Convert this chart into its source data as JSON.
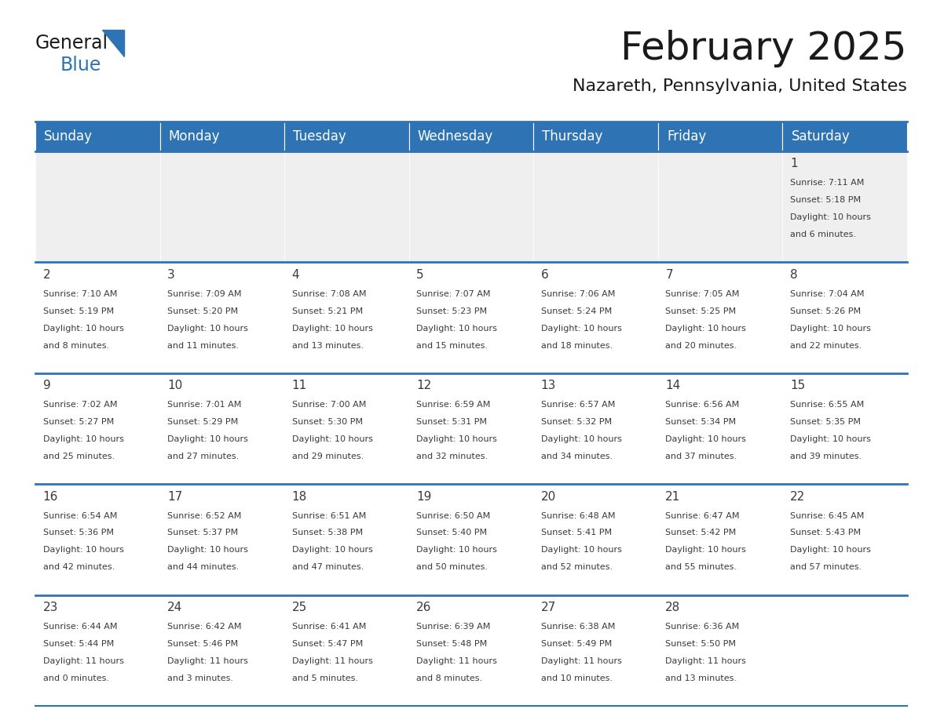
{
  "title": "February 2025",
  "subtitle": "Nazareth, Pennsylvania, United States",
  "header_bg_color": "#2E74B5",
  "header_text_color": "#FFFFFF",
  "cell_bg_white": "#FFFFFF",
  "cell_bg_gray": "#EFEFEF",
  "border_color": "#2E74B5",
  "text_color": "#3A3A3A",
  "day_names": [
    "Sunday",
    "Monday",
    "Tuesday",
    "Wednesday",
    "Thursday",
    "Friday",
    "Saturday"
  ],
  "days_data": [
    {
      "day": "1",
      "col": 6,
      "row": 0,
      "sunrise": "7:11 AM",
      "sunset": "5:18 PM",
      "daylight_h": "10 hours",
      "daylight_m": "and 6 minutes."
    },
    {
      "day": "2",
      "col": 0,
      "row": 1,
      "sunrise": "7:10 AM",
      "sunset": "5:19 PM",
      "daylight_h": "10 hours",
      "daylight_m": "and 8 minutes."
    },
    {
      "day": "3",
      "col": 1,
      "row": 1,
      "sunrise": "7:09 AM",
      "sunset": "5:20 PM",
      "daylight_h": "10 hours",
      "daylight_m": "and 11 minutes."
    },
    {
      "day": "4",
      "col": 2,
      "row": 1,
      "sunrise": "7:08 AM",
      "sunset": "5:21 PM",
      "daylight_h": "10 hours",
      "daylight_m": "and 13 minutes."
    },
    {
      "day": "5",
      "col": 3,
      "row": 1,
      "sunrise": "7:07 AM",
      "sunset": "5:23 PM",
      "daylight_h": "10 hours",
      "daylight_m": "and 15 minutes."
    },
    {
      "day": "6",
      "col": 4,
      "row": 1,
      "sunrise": "7:06 AM",
      "sunset": "5:24 PM",
      "daylight_h": "10 hours",
      "daylight_m": "and 18 minutes."
    },
    {
      "day": "7",
      "col": 5,
      "row": 1,
      "sunrise": "7:05 AM",
      "sunset": "5:25 PM",
      "daylight_h": "10 hours",
      "daylight_m": "and 20 minutes."
    },
    {
      "day": "8",
      "col": 6,
      "row": 1,
      "sunrise": "7:04 AM",
      "sunset": "5:26 PM",
      "daylight_h": "10 hours",
      "daylight_m": "and 22 minutes."
    },
    {
      "day": "9",
      "col": 0,
      "row": 2,
      "sunrise": "7:02 AM",
      "sunset": "5:27 PM",
      "daylight_h": "10 hours",
      "daylight_m": "and 25 minutes."
    },
    {
      "day": "10",
      "col": 1,
      "row": 2,
      "sunrise": "7:01 AM",
      "sunset": "5:29 PM",
      "daylight_h": "10 hours",
      "daylight_m": "and 27 minutes."
    },
    {
      "day": "11",
      "col": 2,
      "row": 2,
      "sunrise": "7:00 AM",
      "sunset": "5:30 PM",
      "daylight_h": "10 hours",
      "daylight_m": "and 29 minutes."
    },
    {
      "day": "12",
      "col": 3,
      "row": 2,
      "sunrise": "6:59 AM",
      "sunset": "5:31 PM",
      "daylight_h": "10 hours",
      "daylight_m": "and 32 minutes."
    },
    {
      "day": "13",
      "col": 4,
      "row": 2,
      "sunrise": "6:57 AM",
      "sunset": "5:32 PM",
      "daylight_h": "10 hours",
      "daylight_m": "and 34 minutes."
    },
    {
      "day": "14",
      "col": 5,
      "row": 2,
      "sunrise": "6:56 AM",
      "sunset": "5:34 PM",
      "daylight_h": "10 hours",
      "daylight_m": "and 37 minutes."
    },
    {
      "day": "15",
      "col": 6,
      "row": 2,
      "sunrise": "6:55 AM",
      "sunset": "5:35 PM",
      "daylight_h": "10 hours",
      "daylight_m": "and 39 minutes."
    },
    {
      "day": "16",
      "col": 0,
      "row": 3,
      "sunrise": "6:54 AM",
      "sunset": "5:36 PM",
      "daylight_h": "10 hours",
      "daylight_m": "and 42 minutes."
    },
    {
      "day": "17",
      "col": 1,
      "row": 3,
      "sunrise": "6:52 AM",
      "sunset": "5:37 PM",
      "daylight_h": "10 hours",
      "daylight_m": "and 44 minutes."
    },
    {
      "day": "18",
      "col": 2,
      "row": 3,
      "sunrise": "6:51 AM",
      "sunset": "5:38 PM",
      "daylight_h": "10 hours",
      "daylight_m": "and 47 minutes."
    },
    {
      "day": "19",
      "col": 3,
      "row": 3,
      "sunrise": "6:50 AM",
      "sunset": "5:40 PM",
      "daylight_h": "10 hours",
      "daylight_m": "and 50 minutes."
    },
    {
      "day": "20",
      "col": 4,
      "row": 3,
      "sunrise": "6:48 AM",
      "sunset": "5:41 PM",
      "daylight_h": "10 hours",
      "daylight_m": "and 52 minutes."
    },
    {
      "day": "21",
      "col": 5,
      "row": 3,
      "sunrise": "6:47 AM",
      "sunset": "5:42 PM",
      "daylight_h": "10 hours",
      "daylight_m": "and 55 minutes."
    },
    {
      "day": "22",
      "col": 6,
      "row": 3,
      "sunrise": "6:45 AM",
      "sunset": "5:43 PM",
      "daylight_h": "10 hours",
      "daylight_m": "and 57 minutes."
    },
    {
      "day": "23",
      "col": 0,
      "row": 4,
      "sunrise": "6:44 AM",
      "sunset": "5:44 PM",
      "daylight_h": "11 hours",
      "daylight_m": "and 0 minutes."
    },
    {
      "day": "24",
      "col": 1,
      "row": 4,
      "sunrise": "6:42 AM",
      "sunset": "5:46 PM",
      "daylight_h": "11 hours",
      "daylight_m": "and 3 minutes."
    },
    {
      "day": "25",
      "col": 2,
      "row": 4,
      "sunrise": "6:41 AM",
      "sunset": "5:47 PM",
      "daylight_h": "11 hours",
      "daylight_m": "and 5 minutes."
    },
    {
      "day": "26",
      "col": 3,
      "row": 4,
      "sunrise": "6:39 AM",
      "sunset": "5:48 PM",
      "daylight_h": "11 hours",
      "daylight_m": "and 8 minutes."
    },
    {
      "day": "27",
      "col": 4,
      "row": 4,
      "sunrise": "6:38 AM",
      "sunset": "5:49 PM",
      "daylight_h": "11 hours",
      "daylight_m": "and 10 minutes."
    },
    {
      "day": "28",
      "col": 5,
      "row": 4,
      "sunrise": "6:36 AM",
      "sunset": "5:50 PM",
      "daylight_h": "11 hours",
      "daylight_m": "and 13 minutes."
    }
  ],
  "logo_general_color": "#1a1a1a",
  "logo_blue_color": "#2E74B5",
  "logo_triangle_color": "#2E74B5",
  "title_fontsize": 36,
  "subtitle_fontsize": 16,
  "header_fontsize": 12,
  "day_num_fontsize": 11,
  "cell_text_fontsize": 8
}
